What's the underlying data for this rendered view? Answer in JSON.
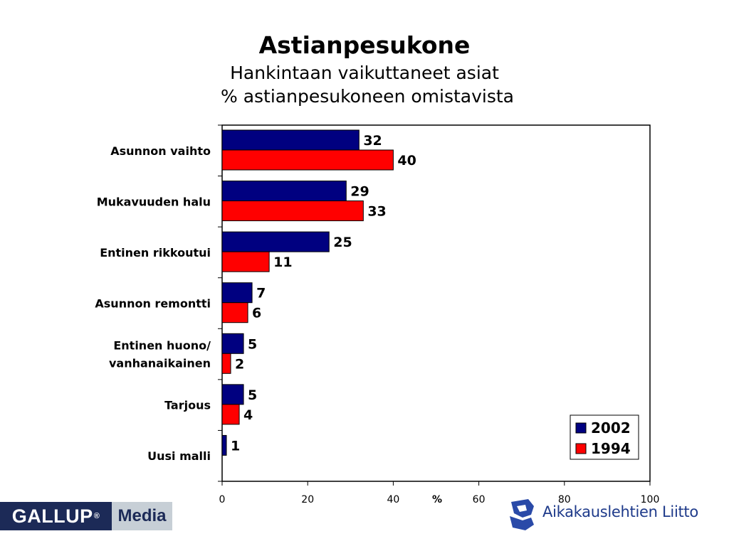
{
  "chart_data": {
    "type": "bar",
    "orientation": "horizontal",
    "title": "Astianpesukone",
    "subtitle_lines": [
      "Hankintaan vaikuttaneet asiat",
      "% astianpesukoneen omistavista"
    ],
    "categories": [
      [
        "Asunnon vaihto"
      ],
      [
        "Mukavuuden halu"
      ],
      [
        "Entinen rikkoutui"
      ],
      [
        "Asunnon remontti"
      ],
      [
        "Entinen huono/",
        "vanhanaikainen"
      ],
      [
        "Tarjous"
      ],
      [
        "Uusi malli"
      ]
    ],
    "series": [
      {
        "name": "2002",
        "color": "#000080",
        "values": [
          32,
          29,
          25,
          7,
          5,
          5,
          1
        ]
      },
      {
        "name": "1994",
        "color": "#ff0000",
        "values": [
          40,
          33,
          11,
          6,
          2,
          4,
          null
        ]
      }
    ],
    "xlabel": "%",
    "xlim": [
      0,
      100
    ],
    "xticks": [
      0,
      20,
      40,
      60,
      80,
      100
    ],
    "grid": false,
    "legend_position": "bottom-right"
  },
  "logos": {
    "gallup_main": "GALLUP",
    "gallup_reg": "®",
    "gallup_media": "Media",
    "aikakauslehtien": "Aikakauslehtien Liitto"
  }
}
